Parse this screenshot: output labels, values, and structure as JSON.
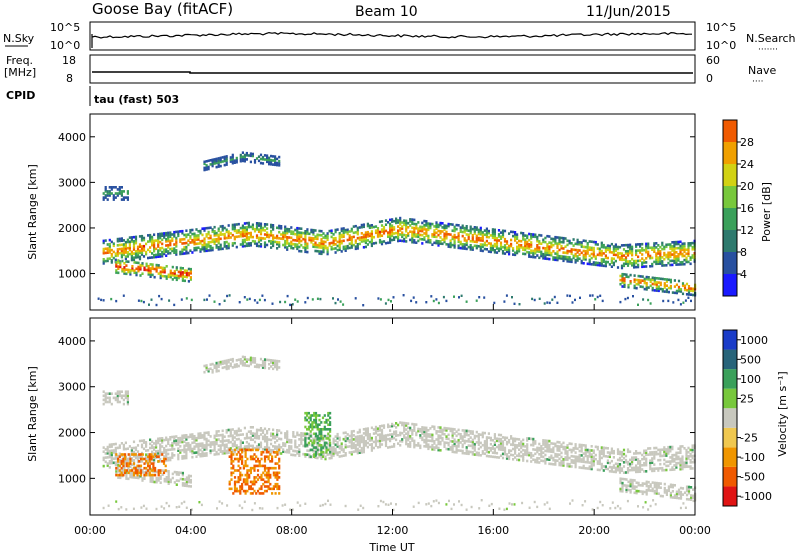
{
  "header": {
    "station": "Goose Bay (fitACF)",
    "beam": "Beam 10",
    "date": "11/Jun/2015"
  },
  "left_labels": {
    "nsky": "N.Sky",
    "freq_line1": "Freq.",
    "freq_line2": "[MHz]",
    "cpid": "CPID"
  },
  "right_labels": {
    "nsearch": "N.Search",
    "nave": "Nave",
    "nsearch_dots": "·······",
    "nave_dots": "····"
  },
  "cpid_value": "tau (fast) 503",
  "noise_ticks": {
    "left": [
      "10^5",
      "10^0"
    ],
    "right": [
      "10^5",
      "10^0"
    ]
  },
  "freq_ticks": {
    "left": [
      "18",
      "8"
    ],
    "right": [
      "60",
      "0"
    ]
  },
  "colors": {
    "power": [
      "#1a1aff",
      "#2850a0",
      "#2e7a6e",
      "#3aa05a",
      "#78c83c",
      "#d2d214",
      "#f0a000",
      "#f05a00",
      "#e01414"
    ],
    "velocity": [
      "#e01414",
      "#f05a00",
      "#f09600",
      "#f0c850",
      "#c8c8be",
      "#78c83c",
      "#3aa05a",
      "#28647a",
      "#1a3cc8"
    ],
    "scatter_gray": "#c8c8be"
  },
  "chart_data": [
    {
      "type": "heatmap",
      "name": "power",
      "ylabel": "Slant Range [km]",
      "ylim": [
        200,
        4500
      ],
      "yticks": [
        "1000",
        "2000",
        "3000",
        "4000"
      ],
      "colorbar": {
        "label": "Power [dB]",
        "ticks": [
          "4",
          "8",
          "12",
          "16",
          "20",
          "24",
          "28"
        ],
        "range": [
          0,
          32
        ]
      },
      "xlim": [
        0,
        24
      ],
      "bands": [
        {
          "x": [
            0.5,
            24
          ],
          "center": [
            1500,
            1700,
            1900,
            1700,
            2000,
            1800,
            1600,
            1400,
            1500
          ],
          "width": 500
        },
        {
          "x": [
            1.0,
            4.0
          ],
          "center": [
            1200,
            1100,
            1000
          ],
          "width": 300
        },
        {
          "x": [
            21,
            24
          ],
          "center": [
            900,
            800,
            700
          ],
          "width": 300
        },
        {
          "x": [
            4.5,
            7.5
          ],
          "center": [
            3400,
            3600,
            3500
          ],
          "width": 200
        },
        {
          "x": [
            0.5,
            1.5
          ],
          "center": [
            2800,
            2800
          ],
          "width": 300
        }
      ]
    },
    {
      "type": "heatmap",
      "name": "velocity",
      "ylabel": "Slant Range [km]",
      "ylim": [
        200,
        4500
      ],
      "yticks": [
        "1000",
        "2000",
        "3000",
        "4000"
      ],
      "xlabel": "Time UT",
      "xticks": [
        "00:00",
        "04:00",
        "08:00",
        "12:00",
        "16:00",
        "20:00",
        "00:00"
      ],
      "colorbar": {
        "label": "Velocity [m s⁻¹]",
        "ticks": [
          "-1000",
          "-500",
          "-100",
          "-25",
          "25",
          "100",
          "500",
          "1000"
        ]
      },
      "xlim": [
        0,
        24
      ],
      "features": [
        {
          "x": [
            1.0,
            3.0
          ],
          "y": [
            1100,
            1600
          ],
          "velocity": -100
        },
        {
          "x": [
            5.5,
            7.5
          ],
          "y": [
            700,
            1700
          ],
          "velocity": -300
        },
        {
          "x": [
            8.5,
            9.5
          ],
          "y": [
            1500,
            2500
          ],
          "velocity": 100
        }
      ]
    }
  ]
}
